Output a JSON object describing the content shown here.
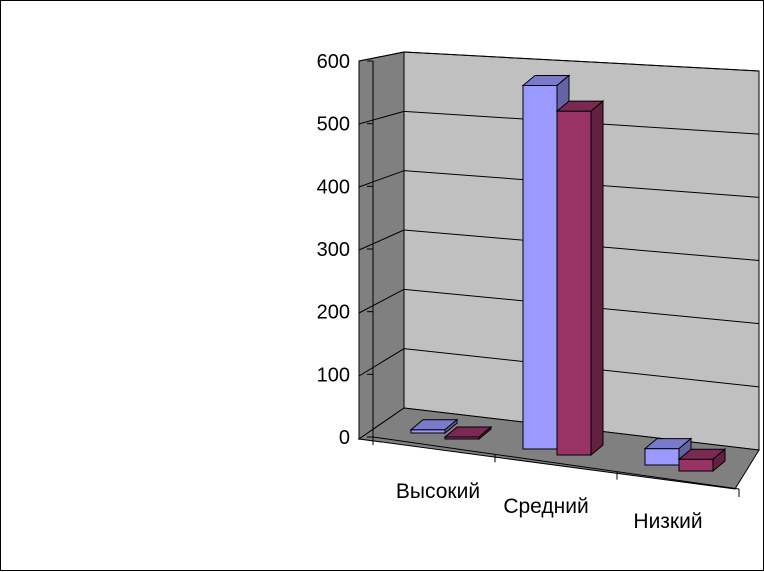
{
  "chart_data": {
    "type": "bar",
    "categories": [
      "Высокий",
      "Средний",
      "Низкий"
    ],
    "series": [
      {
        "values": [
          5,
          555,
          25
        ]
      },
      {
        "values": [
          3,
          525,
          18
        ]
      }
    ],
    "y_ticks": [
      "0",
      "100",
      "200",
      "300",
      "400",
      "500",
      "600"
    ],
    "ylim": [
      0,
      600
    ],
    "grid": true,
    "legend": "none",
    "three_d": true
  },
  "colors": {
    "series1": "#9999ff",
    "series2": "#993366",
    "wall": "#c0c0c0",
    "side_wall": "#808080",
    "floor": "#808080"
  }
}
